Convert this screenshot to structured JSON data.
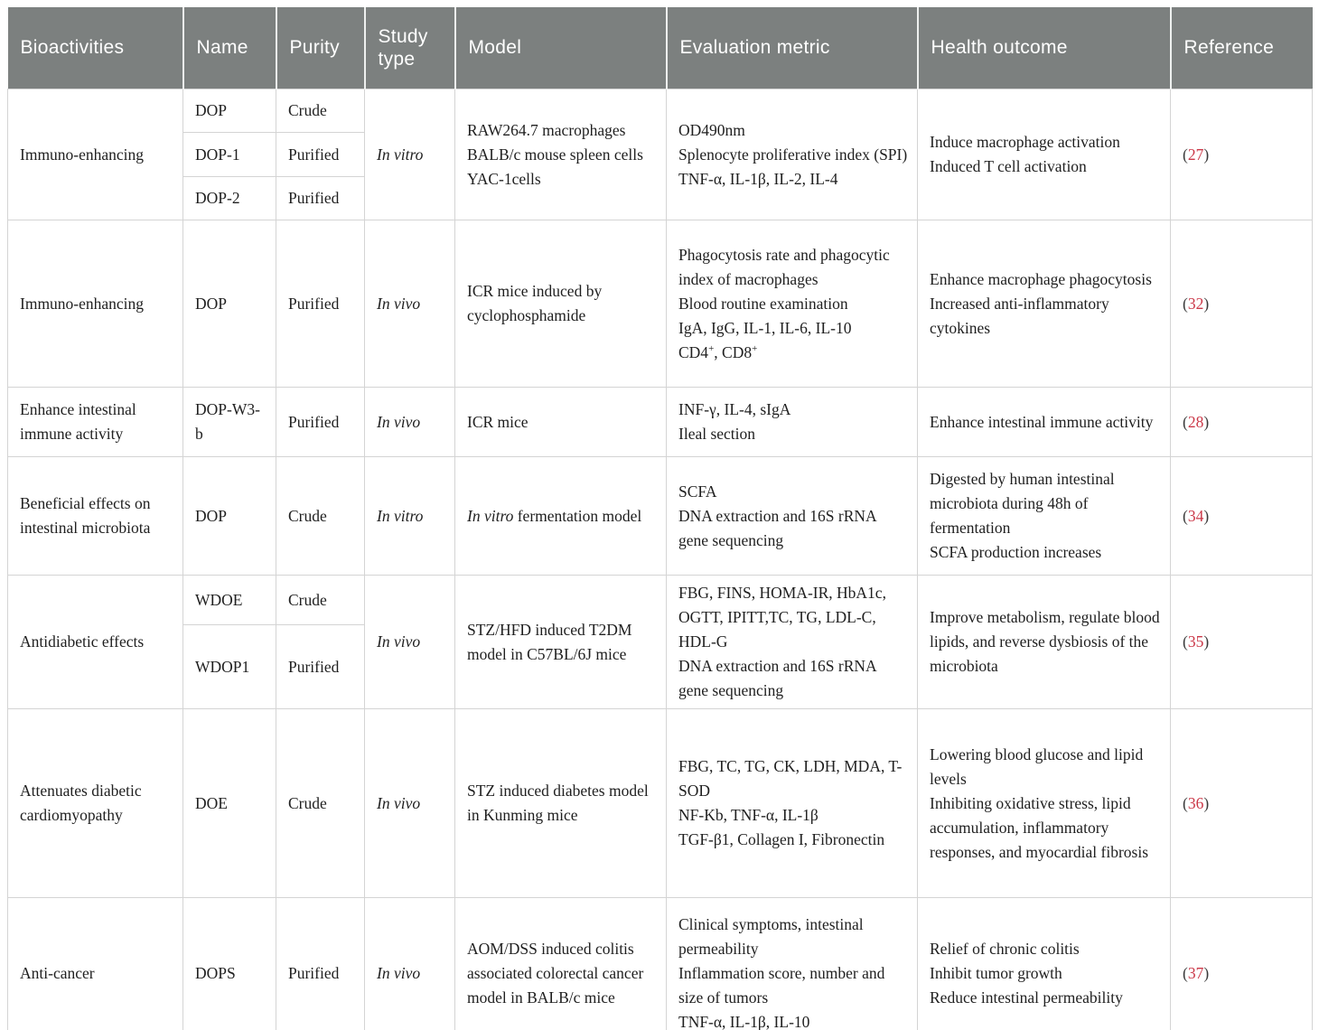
{
  "table": {
    "colors": {
      "header_bg": "#7c807f",
      "header_text": "#ffffff",
      "grid_line": "#d4d4d4",
      "reference_red": "#cb3848",
      "body_text": "#1f1f1f"
    },
    "columns": [
      {
        "label": "Bioactivities"
      },
      {
        "label": "Name"
      },
      {
        "label": "Purity"
      },
      {
        "label": "Study type"
      },
      {
        "label": "Model"
      },
      {
        "label": "Evaluation metric"
      },
      {
        "label": "Health outcome"
      },
      {
        "label": "Reference"
      }
    ],
    "rows": [
      {
        "bioactivity": "Immuno-enhancing",
        "sub": [
          {
            "name": "DOP",
            "purity": "Crude"
          },
          {
            "name": "DOP-1",
            "purity": "Purified"
          },
          {
            "name": "DOP-2",
            "purity": "Purified"
          }
        ],
        "heights": [
          48,
          49,
          48
        ],
        "study_type": "In vitro",
        "model": [
          [
            {
              "t": "RAW264.7 macrophages"
            }
          ],
          [
            {
              "t": "BALB/c mouse spleen cells"
            }
          ],
          [
            {
              "t": "YAC-1cells"
            }
          ]
        ],
        "evaluation": [
          [
            {
              "t": "OD490nm"
            }
          ],
          [
            {
              "t": "Splenocyte proliferative index (SPI)"
            }
          ],
          [
            {
              "t": "TNF-α, IL-1β, IL-2, IL-4"
            }
          ]
        ],
        "health": [
          [
            {
              "t": "Induce macrophage activation"
            }
          ],
          [
            {
              "t": "Induced T cell activation"
            }
          ]
        ],
        "ref": "27"
      },
      {
        "bioactivity": "Immuno-enhancing",
        "sub": [
          {
            "name": "DOP",
            "purity": "Purified"
          }
        ],
        "heights": [
          185
        ],
        "study_type": "In vivo",
        "model": [
          [
            {
              "t": "ICR mice induced by cyclophosphamide"
            }
          ]
        ],
        "evaluation": [
          [
            {
              "t": "Phagocytosis rate and phagocytic index of macrophages"
            }
          ],
          [
            {
              "t": "Blood routine examination"
            }
          ],
          [
            {
              "t": "IgA, IgG, IL-1, IL-6, IL-10"
            }
          ],
          [
            {
              "t": "CD4"
            },
            {
              "t": "+",
              "sup": true
            },
            {
              "t": ", CD8"
            },
            {
              "t": "+",
              "sup": true
            }
          ]
        ],
        "health": [
          [
            {
              "t": "Enhance macrophage phagocytosis"
            }
          ],
          [
            {
              "t": "Increased anti-inflammatory cytokines"
            }
          ]
        ],
        "ref": "32"
      },
      {
        "bioactivity": "Enhance intestinal immune activity",
        "sub": [
          {
            "name": "DOP-W3-b",
            "purity": "Purified"
          }
        ],
        "heights": [
          77
        ],
        "study_type": "In vivo",
        "model": [
          [
            {
              "t": "ICR mice"
            }
          ]
        ],
        "evaluation": [
          [
            {
              "t": "INF-γ, IL-4, sIgA"
            }
          ],
          [
            {
              "t": "Ileal section"
            }
          ]
        ],
        "health": [
          [
            {
              "t": "Enhance intestinal immune activity"
            }
          ]
        ],
        "ref": "28"
      },
      {
        "bioactivity": "Beneficial effects on intestinal microbiota",
        "sub": [
          {
            "name": "DOP",
            "purity": "Crude"
          }
        ],
        "heights": [
          131
        ],
        "study_type": "In vitro",
        "model": [
          [
            {
              "t": "In vitro",
              "i": true
            },
            {
              "t": " fermentation model"
            }
          ]
        ],
        "evaluation": [
          [
            {
              "t": "SCFA"
            }
          ],
          [
            {
              "t": "DNA extraction and 16S rRNA gene sequencing"
            }
          ]
        ],
        "health": [
          [
            {
              "t": "Digested by human intestinal microbiota during 48h of fermentation"
            }
          ],
          [
            {
              "t": "SCFA production increases"
            }
          ]
        ],
        "ref": "34"
      },
      {
        "bioactivity": "Antidiabetic effects",
        "sub": [
          {
            "name": "WDOE",
            "purity": "Crude"
          },
          {
            "name": "WDOP1",
            "purity": "Purified"
          }
        ],
        "heights": [
          48,
          81
        ],
        "study_type": "In vivo",
        "model": [
          [
            {
              "t": "STZ/HFD induced T2DM model in C57BL/6J mice"
            }
          ]
        ],
        "evaluation": [
          [
            {
              "t": "FBG, FINS, HOMA-IR, HbA1c, OGTT, IPITT,TC, TG, LDL-C, HDL-G"
            }
          ],
          [
            {
              "t": "DNA extraction and 16S rRNA gene sequencing"
            }
          ]
        ],
        "health": [
          [
            {
              "t": "Improve metabolism, regulate blood lipids, and reverse dysbiosis of the microbiota"
            }
          ]
        ],
        "ref": "35"
      },
      {
        "bioactivity": "Attenuates diabetic cardiomyopathy",
        "sub": [
          {
            "name": "DOE",
            "purity": "Crude"
          }
        ],
        "heights": [
          209
        ],
        "study_type": "In vivo",
        "model": [
          [
            {
              "t": "STZ induced diabetes model in Kunming mice"
            }
          ]
        ],
        "evaluation": [
          [
            {
              "t": "FBG, TC, TG, CK, LDH, MDA, T-SOD"
            }
          ],
          [
            {
              "t": "NF-Kb, TNF-α, IL-1β"
            }
          ],
          [
            {
              "t": "TGF-β1, Collagen I, Fibronectin"
            }
          ]
        ],
        "health": [
          [
            {
              "t": "Lowering blood glucose and lipid levels"
            }
          ],
          [
            {
              "t": "Inhibiting oxidative stress, lipid accumulation, inflammatory responses, and myocardial fibrosis"
            }
          ]
        ],
        "ref": "36"
      },
      {
        "bioactivity": "Anti-cancer",
        "sub": [
          {
            "name": "DOPS",
            "purity": "Purified"
          }
        ],
        "heights": [
          167
        ],
        "study_type": "In vivo",
        "model": [
          [
            {
              "t": "AOM/DSS induced colitis associated colorectal cancer model in BALB/c mice"
            }
          ]
        ],
        "evaluation": [
          [
            {
              "t": "Clinical symptoms, intestinal permeability"
            }
          ],
          [
            {
              "t": "Inflammation score, number and size of tumors"
            }
          ],
          [
            {
              "t": "TNF-α, IL-1β, IL-10"
            }
          ]
        ],
        "health": [
          [
            {
              "t": "Relief of chronic colitis"
            }
          ],
          [
            {
              "t": "Inhibit tumor growth"
            }
          ],
          [
            {
              "t": "Reduce intestinal permeability"
            }
          ]
        ],
        "ref": "37"
      }
    ]
  }
}
